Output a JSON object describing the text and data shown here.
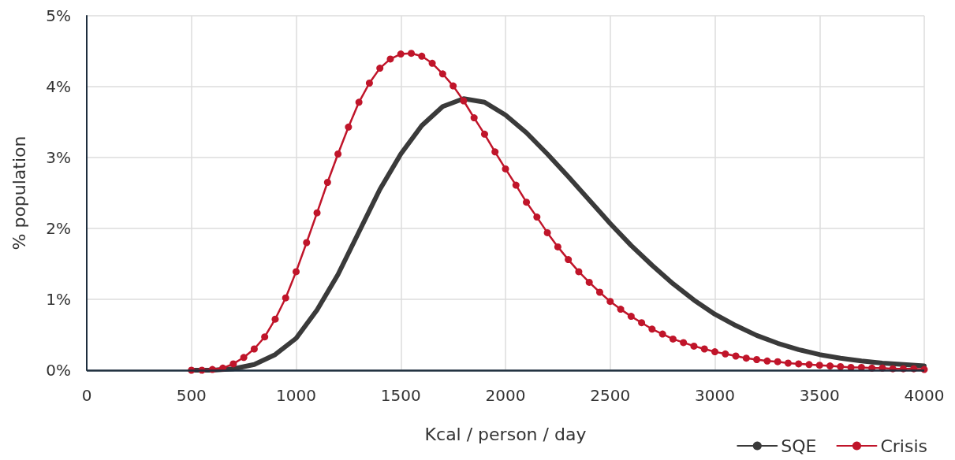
{
  "chart_data": {
    "type": "line",
    "xlabel": "Kcal / person / day",
    "ylabel": "% population",
    "xlim": [
      0,
      4000
    ],
    "xticks": [
      0,
      500,
      1000,
      1500,
      2000,
      2500,
      3000,
      3500,
      4000
    ],
    "ylim": [
      0,
      5
    ],
    "yticks": [
      {
        "value": 0,
        "label": "0%"
      },
      {
        "value": 1,
        "label": "1%"
      },
      {
        "value": 2,
        "label": "2%"
      },
      {
        "value": 3,
        "label": "3%"
      },
      {
        "value": 4,
        "label": "4%"
      },
      {
        "value": 5,
        "label": "5%"
      }
    ],
    "grid": true,
    "legend": "bottom right",
    "series": [
      {
        "name": "SQE",
        "color": "#3a3a3a",
        "marker": "none",
        "x": [
          500,
          600,
          700,
          800,
          900,
          1000,
          1100,
          1200,
          1300,
          1400,
          1500,
          1600,
          1700,
          1800,
          1900,
          2000,
          2100,
          2200,
          2300,
          2400,
          2500,
          2600,
          2700,
          2800,
          2900,
          3000,
          3100,
          3200,
          3300,
          3400,
          3500,
          3600,
          3700,
          3800,
          3900,
          4000
        ],
        "values": [
          0,
          0.0,
          0.02,
          0.08,
          0.22,
          0.45,
          0.85,
          1.35,
          1.95,
          2.55,
          3.05,
          3.45,
          3.72,
          3.83,
          3.78,
          3.6,
          3.35,
          3.05,
          2.73,
          2.4,
          2.07,
          1.76,
          1.48,
          1.22,
          0.99,
          0.79,
          0.63,
          0.49,
          0.38,
          0.29,
          0.22,
          0.17,
          0.13,
          0.1,
          0.08,
          0.06
        ]
      },
      {
        "name": "Crisis",
        "color": "#c0152a",
        "marker": "circle",
        "x": [
          500,
          550,
          600,
          650,
          700,
          750,
          800,
          850,
          900,
          950,
          1000,
          1050,
          1100,
          1150,
          1200,
          1250,
          1300,
          1350,
          1400,
          1450,
          1500,
          1550,
          1600,
          1650,
          1700,
          1750,
          1800,
          1850,
          1900,
          1950,
          2000,
          2050,
          2100,
          2150,
          2200,
          2250,
          2300,
          2350,
          2400,
          2450,
          2500,
          2550,
          2600,
          2650,
          2700,
          2750,
          2800,
          2850,
          2900,
          2950,
          3000,
          3050,
          3100,
          3150,
          3200,
          3250,
          3300,
          3350,
          3400,
          3450,
          3500,
          3550,
          3600,
          3650,
          3700,
          3750,
          3800,
          3850,
          3900,
          3950,
          4000
        ],
        "values": [
          0,
          0,
          0.01,
          0.03,
          0.09,
          0.18,
          0.3,
          0.47,
          0.72,
          1.02,
          1.39,
          1.8,
          2.22,
          2.65,
          3.05,
          3.43,
          3.78,
          4.05,
          4.26,
          4.39,
          4.46,
          4.47,
          4.43,
          4.33,
          4.18,
          4.01,
          3.8,
          3.56,
          3.33,
          3.08,
          2.84,
          2.61,
          2.37,
          2.16,
          1.94,
          1.74,
          1.56,
          1.39,
          1.24,
          1.1,
          0.97,
          0.86,
          0.76,
          0.67,
          0.58,
          0.51,
          0.44,
          0.39,
          0.34,
          0.3,
          0.26,
          0.23,
          0.2,
          0.17,
          0.15,
          0.13,
          0.12,
          0.1,
          0.09,
          0.08,
          0.07,
          0.06,
          0.05,
          0.04,
          0.04,
          0.03,
          0.03,
          0.02,
          0.02,
          0.02,
          0.01
        ]
      }
    ]
  }
}
